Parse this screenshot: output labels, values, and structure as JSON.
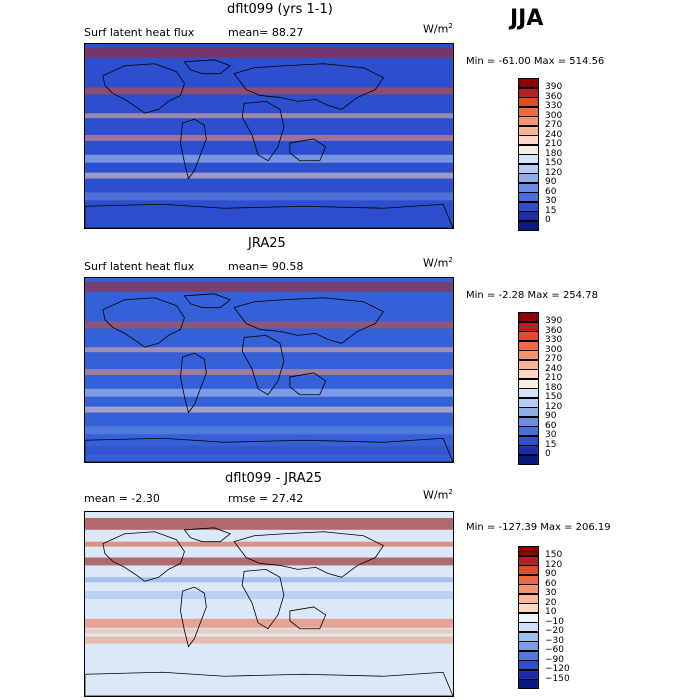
{
  "season": "JJA",
  "panels": [
    {
      "title": "dflt099 (yrs 1-1)",
      "left_text": "Surf latent heat flux",
      "mid_text": "mean=  88.27",
      "units": "W/m",
      "units_exp": "2",
      "minmax": "Min = -61.00 Max = 514.56",
      "ticks": [
        "390",
        "360",
        "330",
        "300",
        "270",
        "240",
        "210",
        "180",
        "150",
        "120",
        "90",
        "60",
        "30",
        "15",
        "0"
      ],
      "colors": [
        "#8b0000",
        "#b22222",
        "#d94f2a",
        "#ee6a45",
        "#f5946f",
        "#f9b699",
        "#fcd7c1",
        "#f7efe3",
        "#d4e4f7",
        "#b6ccf0",
        "#8faee8",
        "#6a8ee0",
        "#4a6fd8",
        "#2f4fc6",
        "#1a2fa8",
        "#0a1880"
      ],
      "map_base": "#2c4fcf"
    },
    {
      "title": "JRA25",
      "left_text": "Surf latent heat flux",
      "mid_text": "mean=  90.58",
      "units": "W/m",
      "units_exp": "2",
      "minmax": "Min =  -2.28 Max = 254.78",
      "ticks": [
        "390",
        "360",
        "330",
        "300",
        "270",
        "240",
        "210",
        "180",
        "150",
        "120",
        "90",
        "60",
        "30",
        "15",
        "0"
      ],
      "colors": [
        "#8b0000",
        "#b22222",
        "#d94f2a",
        "#ee6a45",
        "#f5946f",
        "#f9b699",
        "#fcd7c1",
        "#f7efe3",
        "#d4e4f7",
        "#b6ccf0",
        "#8faee8",
        "#6a8ee0",
        "#4a6fd8",
        "#2f4fc6",
        "#1a2fa8",
        "#0a1880"
      ],
      "map_base": "#3460d8"
    },
    {
      "title": "dflt099 - JRA25",
      "left_text": "mean =  -2.30",
      "mid_text": "rmse =  27.42",
      "units": "W/m",
      "units_exp": "2",
      "minmax": "Min = -127.39 Max = 206.19",
      "ticks": [
        "150",
        "120",
        "90",
        "60",
        "30",
        "20",
        "10",
        "−10",
        "−20",
        "−30",
        "−60",
        "−90",
        "−120",
        "−150"
      ],
      "colors": [
        "#8b0000",
        "#b22222",
        "#d94f2a",
        "#ee6a45",
        "#f5946f",
        "#f9b699",
        "#fcd7c1",
        "#eef4fb",
        "#cfe0f5",
        "#9fbfec",
        "#7a9de2",
        "#5478d6",
        "#2f4fc6",
        "#1a2fa8",
        "#0a1880"
      ],
      "map_base": "#dbe8f7"
    }
  ],
  "chart_data": {
    "type": "heatmap",
    "title": "JJA",
    "panels": [
      {
        "name": "dflt099 (yrs 1-1)",
        "field": "Surf latent heat flux",
        "units": "W/m2",
        "mean": 88.27,
        "min": -61.0,
        "max": 514.56,
        "levels": [
          0,
          15,
          30,
          60,
          90,
          120,
          150,
          180,
          210,
          240,
          270,
          300,
          330,
          360,
          390
        ]
      },
      {
        "name": "JRA25",
        "field": "Surf latent heat flux",
        "units": "W/m2",
        "mean": 90.58,
        "min": -2.28,
        "max": 254.78,
        "levels": [
          0,
          15,
          30,
          60,
          90,
          120,
          150,
          180,
          210,
          240,
          270,
          300,
          330,
          360,
          390
        ]
      },
      {
        "name": "dflt099 - JRA25",
        "units": "W/m2",
        "mean": -2.3,
        "rmse": 27.42,
        "min": -127.39,
        "max": 206.19,
        "levels": [
          -150,
          -120,
          -90,
          -60,
          -30,
          -20,
          -10,
          10,
          20,
          30,
          60,
          90,
          120,
          150
        ]
      }
    ]
  }
}
